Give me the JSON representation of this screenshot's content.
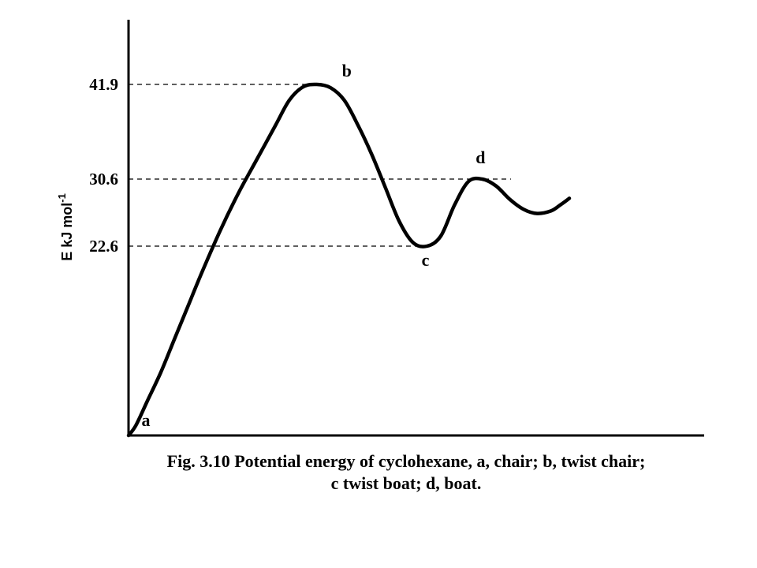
{
  "chart_data": {
    "type": "line",
    "title": "",
    "ylabel": "E kJ mol",
    "ylabel_sup": "-1",
    "xlabel": "",
    "ylim": [
      0,
      50
    ],
    "yticks": [
      {
        "value": 22.6,
        "label": "22.6"
      },
      {
        "value": 30.6,
        "label": "30.6"
      },
      {
        "value": 41.9,
        "label": "41.9"
      }
    ],
    "curve": {
      "x": [
        0,
        0.8,
        2,
        3.5,
        5,
        6.5,
        8,
        10,
        12,
        14,
        16,
        17.5,
        19,
        20.5,
        22,
        23.5,
        25,
        26.5,
        28,
        29.5,
        31,
        32.5,
        34,
        35.5,
        37,
        38.5,
        40,
        41.5,
        43,
        44.5,
        46,
        47,
        48
      ],
      "y": [
        0,
        1.2,
        4,
        7.5,
        11.5,
        15.5,
        19.5,
        24.5,
        29,
        33,
        37,
        40,
        41.6,
        41.9,
        41.5,
        40,
        37,
        33.5,
        29.5,
        25.5,
        23,
        22.6,
        23.8,
        27.5,
        30.3,
        30.6,
        29.8,
        28.2,
        27,
        26.5,
        26.8,
        27.5,
        28.3
      ]
    },
    "points": [
      {
        "label": "a",
        "x": 0,
        "y": 0,
        "desc": "chair"
      },
      {
        "label": "b",
        "x": 20.5,
        "y": 41.9,
        "desc": "twist chair"
      },
      {
        "label": "c",
        "x": 32.5,
        "y": 22.6,
        "desc": "twist boat"
      },
      {
        "label": "d",
        "x": 38.5,
        "y": 30.6,
        "desc": "boat"
      }
    ],
    "grid": false
  },
  "caption": {
    "line1": "Fig. 3.10 Potential energy of cyclohexane, a, chair; b, twist chair;",
    "line2": "c twist boat; d, boat."
  }
}
